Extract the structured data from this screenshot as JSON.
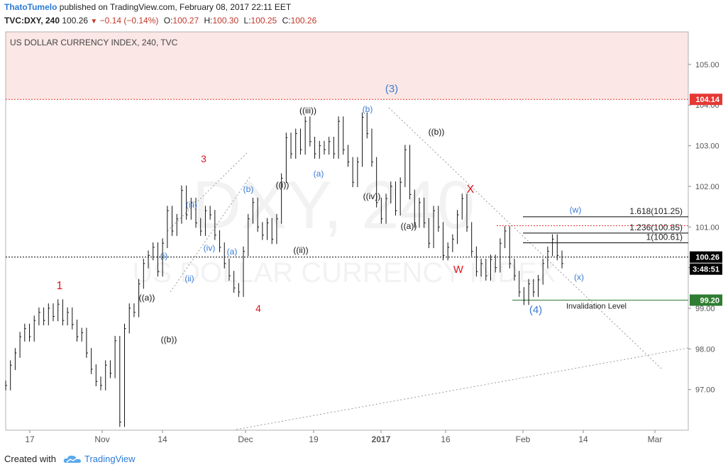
{
  "header": {
    "user": "ThatoTumelo",
    "published": "published on TradingView.com, February 08, 2017 22:11 EET",
    "symbol": "TVC:DXY, 240",
    "last": "100.26",
    "change": "−0.14 (−0.14%)",
    "open_label": "O:",
    "open": "100.27",
    "high_label": "H:",
    "high": "100.30",
    "low_label": "L:",
    "low": "100.25",
    "close_label": "C:",
    "close": "100.26"
  },
  "chart_title": "US DOLLAR CURRENCY INDEX, 240, TVC",
  "watermark": {
    "line1": "DXY, 240",
    "line2": "US DOLLAR CURRENCY INDEX"
  },
  "price_badges": {
    "resistance": "104.14",
    "last": "100.26",
    "countdown": "3:48:51",
    "invalidation": "99.20"
  },
  "annotations": {
    "fib_1618": "1.618(101.25)",
    "fib_1236": "1.236(100.85)",
    "fib_1": "1(100.61)",
    "invalidation": "Invalidation Level"
  },
  "wave_labels": [
    {
      "text": "1",
      "color": "red"
    },
    {
      "text": "((a))",
      "color": "black"
    },
    {
      "text": "((b))",
      "color": "black"
    },
    {
      "text": "(i)",
      "color": "blue"
    },
    {
      "text": "(ii)",
      "color": "blue"
    },
    {
      "text": "(iii)",
      "color": "blue"
    },
    {
      "text": "(iv)",
      "color": "blue"
    },
    {
      "text": "3",
      "color": "red"
    },
    {
      "text": "(a)",
      "color": "blue"
    },
    {
      "text": "(b)",
      "color": "blue"
    },
    {
      "text": "4",
      "color": "red"
    },
    {
      "text": "((i))",
      "color": "black"
    },
    {
      "text": "((ii))",
      "color": "black"
    },
    {
      "text": "((iii))",
      "color": "black"
    },
    {
      "text": "(a)",
      "color": "blue"
    },
    {
      "text": "((iv))",
      "color": "black"
    },
    {
      "text": "(b)",
      "color": "blue"
    },
    {
      "text": "(3)",
      "color": "blue"
    },
    {
      "text": "((a))",
      "color": "black"
    },
    {
      "text": "((b))",
      "color": "black"
    },
    {
      "text": "X",
      "color": "red"
    },
    {
      "text": "W",
      "color": "red"
    },
    {
      "text": "(w)",
      "color": "blue"
    },
    {
      "text": "(x)",
      "color": "blue"
    },
    {
      "text": "(4)",
      "color": "blue"
    }
  ],
  "colors": {
    "up": "#000000",
    "blue": "#3a7bd5",
    "red": "#e0161d",
    "resistance": "#e53935",
    "zone": "#fbe7e5",
    "support": "#2e7d32"
  },
  "footer": {
    "created_with": "Created with",
    "brand": "TradingView"
  },
  "chart_data": {
    "type": "line",
    "title": "US DOLLAR CURRENCY INDEX, 240, TVC",
    "x_ticks": [
      "17",
      "Nov",
      "14",
      "Dec",
      "19",
      "2017",
      "16",
      "Feb",
      "14",
      "Mar"
    ],
    "y_ticks": [
      "97.00",
      "98.00",
      "99.00",
      "100.00",
      "101.00",
      "102.00",
      "103.00",
      "104.00",
      "105.00"
    ],
    "ylim": [
      96.0,
      105.8
    ],
    "series": [
      {
        "values": [
          97.1,
          97.6,
          97.9,
          98.3,
          98.5,
          98.3,
          98.7,
          98.9,
          98.7,
          99.0,
          98.8,
          99.1,
          98.7,
          98.9,
          98.6,
          98.3,
          98.4,
          97.9,
          97.5,
          97.2,
          97.1,
          97.6,
          97.4,
          98.2,
          96.2,
          98.5,
          99.0,
          98.9,
          99.6,
          100.1,
          100.3,
          100.5,
          99.9,
          100.6,
          101.4,
          100.9,
          101.2,
          101.9,
          101.3,
          101.6,
          101.1,
          100.9,
          101.4,
          101.3,
          100.8,
          100.5,
          100.1,
          99.8,
          99.5,
          99.4,
          100.4,
          101.2,
          101.6,
          101.0,
          100.8,
          101.1,
          100.7,
          101.2,
          102.2,
          103.2,
          102.8,
          103.3,
          102.9,
          103.6,
          103.1,
          102.8,
          103.0,
          102.9,
          103.1,
          102.8,
          103.6,
          102.9,
          102.6,
          102.1,
          102.6,
          103.7,
          103.3,
          102.6,
          101.6,
          101.2,
          101.7,
          102.0,
          101.4,
          102.1,
          102.9,
          101.8,
          101.1,
          101.6,
          101.1,
          100.6,
          101.4,
          101.0,
          100.3,
          100.5,
          100.7,
          101.3,
          101.7,
          101.0,
          100.4,
          99.9,
          100.1,
          99.8,
          100.2,
          100.0,
          100.6,
          100.9,
          100.1,
          99.8,
          99.4,
          99.2,
          99.6,
          99.4,
          99.7,
          100.1,
          100.4,
          100.7,
          100.3,
          100.1
        ],
        "x_start": "2016-10-13",
        "x_end": "2017-02-08"
      }
    ],
    "resistance_level": 104.14,
    "fib_levels": [
      101.25,
      100.85,
      100.61
    ],
    "invalidation_level": 99.2,
    "last_price": 100.26
  }
}
